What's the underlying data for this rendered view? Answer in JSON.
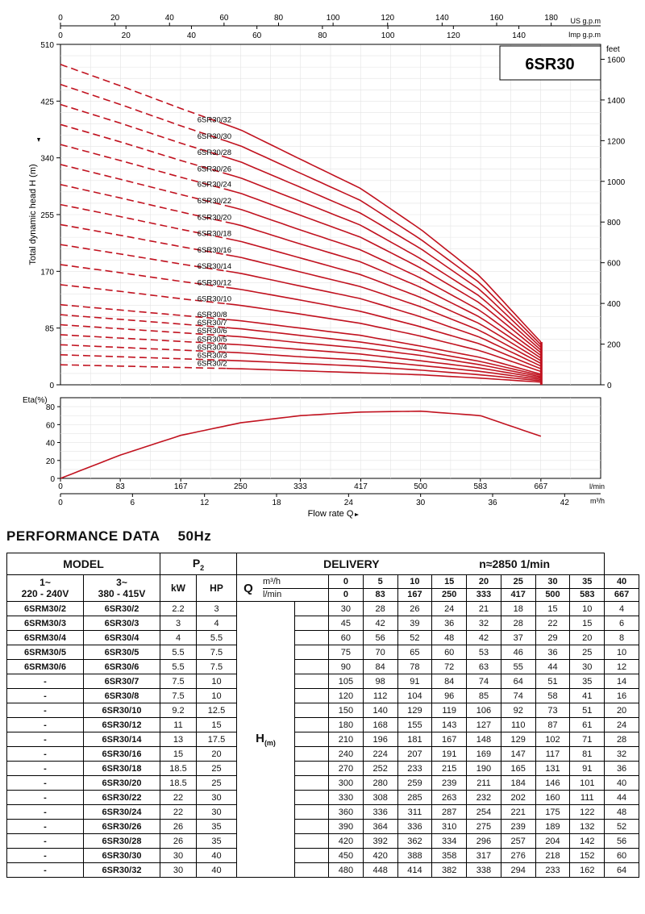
{
  "chart_data": [
    {
      "type": "line",
      "title": "6SR30",
      "ylabel": "Total dynamic head H (m)",
      "ylabel_right": "feet",
      "xlabel_top_us": "US g.p.m",
      "xlabel_top_imp": "Imp g.p.m",
      "ylim": [
        0,
        510
      ],
      "xlim_lmin": [
        0,
        750
      ],
      "y_ticks": [
        "0",
        "85",
        "170",
        "255",
        "340",
        "425",
        "510"
      ],
      "y_ticks_feet": [
        "0",
        "200",
        "400",
        "600",
        "800",
        "1000",
        "1200",
        "1400",
        "1600"
      ],
      "x_ticks_us": [
        "0",
        "20",
        "40",
        "60",
        "80",
        "100",
        "120",
        "140",
        "160",
        "180"
      ],
      "x_ticks_imp": [
        "0",
        "20",
        "40",
        "60",
        "80",
        "100",
        "120",
        "140"
      ],
      "series_note": "dashed segment below 250 l/min, solid above",
      "series": [
        {
          "name": "6SR30/2",
          "values": [
            30,
            28,
            26,
            24,
            21,
            18,
            15,
            10,
            4
          ]
        },
        {
          "name": "6SR30/3",
          "values": [
            45,
            42,
            39,
            36,
            32,
            28,
            22,
            15,
            6
          ]
        },
        {
          "name": "6SR30/4",
          "values": [
            60,
            56,
            52,
            48,
            42,
            37,
            29,
            20,
            8
          ]
        },
        {
          "name": "6SR30/5",
          "values": [
            75,
            70,
            65,
            60,
            53,
            46,
            36,
            25,
            10
          ]
        },
        {
          "name": "6SR30/6",
          "values": [
            90,
            84,
            78,
            72,
            63,
            55,
            44,
            30,
            12
          ]
        },
        {
          "name": "6SR30/7",
          "values": [
            105,
            98,
            91,
            84,
            74,
            64,
            51,
            35,
            14
          ]
        },
        {
          "name": "6SR30/8",
          "values": [
            120,
            112,
            104,
            96,
            85,
            74,
            58,
            41,
            16
          ]
        },
        {
          "name": "6SR30/10",
          "values": [
            150,
            140,
            129,
            119,
            106,
            92,
            73,
            51,
            20
          ]
        },
        {
          "name": "6SR30/12",
          "values": [
            180,
            168,
            155,
            143,
            127,
            110,
            87,
            61,
            24
          ]
        },
        {
          "name": "6SR30/14",
          "values": [
            210,
            196,
            181,
            167,
            148,
            129,
            102,
            71,
            28
          ]
        },
        {
          "name": "6SR30/16",
          "values": [
            240,
            224,
            207,
            191,
            169,
            147,
            117,
            81,
            32
          ]
        },
        {
          "name": "6SR30/18",
          "values": [
            270,
            252,
            233,
            215,
            190,
            165,
            131,
            91,
            36
          ]
        },
        {
          "name": "6SR30/20",
          "values": [
            300,
            280,
            259,
            239,
            211,
            184,
            146,
            101,
            40
          ]
        },
        {
          "name": "6SR30/22",
          "values": [
            330,
            308,
            285,
            263,
            232,
            202,
            160,
            111,
            44
          ]
        },
        {
          "name": "6SR30/24",
          "values": [
            360,
            336,
            311,
            287,
            254,
            221,
            175,
            122,
            48
          ]
        },
        {
          "name": "6SR30/26",
          "values": [
            390,
            364,
            336,
            310,
            275,
            239,
            189,
            132,
            52
          ]
        },
        {
          "name": "6SR30/28",
          "values": [
            420,
            392,
            362,
            334,
            296,
            257,
            204,
            142,
            56
          ]
        },
        {
          "name": "6SR30/30",
          "values": [
            450,
            420,
            388,
            358,
            317,
            276,
            218,
            152,
            60
          ]
        },
        {
          "name": "6SR30/32",
          "values": [
            480,
            448,
            414,
            382,
            338,
            294,
            233,
            162,
            64
          ]
        }
      ],
      "x": [
        0,
        83,
        167,
        250,
        333,
        417,
        500,
        583,
        667
      ],
      "line_color": "#c1121f"
    },
    {
      "type": "line",
      "ylabel": "Eta(%)",
      "xlabel": "Flow rate  Q",
      "ylim": [
        0,
        90
      ],
      "y_ticks": [
        "0",
        "20",
        "40",
        "60",
        "80"
      ],
      "x_ticks_lmin": [
        "0",
        "83",
        "167",
        "250",
        "333",
        "417",
        "500",
        "583",
        "667"
      ],
      "x_unit_lmin": "l/min",
      "x_ticks_m3h": [
        "0",
        "6",
        "12",
        "18",
        "24",
        "30",
        "36",
        "42"
      ],
      "x_unit_m3h": "m³/h",
      "series": [
        {
          "x": [
            0,
            83,
            167,
            250,
            333,
            417,
            500,
            583,
            667
          ],
          "values": [
            0,
            26,
            48,
            62,
            70,
            74,
            75,
            70,
            47
          ]
        }
      ],
      "line_color": "#c1121f"
    }
  ],
  "performance": {
    "title": "PERFORMANCE  DATA",
    "freq": "50Hz",
    "model_header": "MODEL",
    "p2_header": "P",
    "p2_sub": "2",
    "delivery_header": "DELIVERY",
    "speed": "n≈2850 1/min",
    "single_phase": "1~",
    "single_phase_volt": "220 - 240V",
    "three_phase": "3~",
    "three_phase_volt": "380 - 415V",
    "kw": "kW",
    "hp": "HP",
    "q": "Q",
    "q_unit_m3h": "m³/h",
    "q_unit_lmin": "l/min",
    "q_m3h": [
      "0",
      "5",
      "10",
      "15",
      "20",
      "25",
      "30",
      "35",
      "40"
    ],
    "q_lmin": [
      "0",
      "83",
      "167",
      "250",
      "333",
      "417",
      "500",
      "583",
      "667"
    ],
    "h_label": "H",
    "h_unit": "(m)",
    "rows": [
      {
        "m1": "6SRM30/2",
        "m3": "6SR30/2",
        "kw": "2.2",
        "hp": "3",
        "h": [
          "30",
          "28",
          "26",
          "24",
          "21",
          "18",
          "15",
          "10",
          "4"
        ]
      },
      {
        "m1": "6SRM30/3",
        "m3": "6SR30/3",
        "kw": "3",
        "hp": "4",
        "h": [
          "45",
          "42",
          "39",
          "36",
          "32",
          "28",
          "22",
          "15",
          "6"
        ]
      },
      {
        "m1": "6SRM30/4",
        "m3": "6SR30/4",
        "kw": "4",
        "hp": "5.5",
        "h": [
          "60",
          "56",
          "52",
          "48",
          "42",
          "37",
          "29",
          "20",
          "8"
        ]
      },
      {
        "m1": "6SRM30/5",
        "m3": "6SR30/5",
        "kw": "5.5",
        "hp": "7.5",
        "h": [
          "75",
          "70",
          "65",
          "60",
          "53",
          "46",
          "36",
          "25",
          "10"
        ]
      },
      {
        "m1": "6SRM30/6",
        "m3": "6SR30/6",
        "kw": "5.5",
        "hp": "7.5",
        "h": [
          "90",
          "84",
          "78",
          "72",
          "63",
          "55",
          "44",
          "30",
          "12"
        ]
      },
      {
        "m1": "-",
        "m3": "6SR30/7",
        "kw": "7.5",
        "hp": "10",
        "h": [
          "105",
          "98",
          "91",
          "84",
          "74",
          "64",
          "51",
          "35",
          "14"
        ]
      },
      {
        "m1": "-",
        "m3": "6SR30/8",
        "kw": "7.5",
        "hp": "10",
        "h": [
          "120",
          "112",
          "104",
          "96",
          "85",
          "74",
          "58",
          "41",
          "16"
        ]
      },
      {
        "m1": "-",
        "m3": "6SR30/10",
        "kw": "9.2",
        "hp": "12.5",
        "h": [
          "150",
          "140",
          "129",
          "119",
          "106",
          "92",
          "73",
          "51",
          "20"
        ]
      },
      {
        "m1": "-",
        "m3": "6SR30/12",
        "kw": "11",
        "hp": "15",
        "h": [
          "180",
          "168",
          "155",
          "143",
          "127",
          "110",
          "87",
          "61",
          "24"
        ]
      },
      {
        "m1": "-",
        "m3": "6SR30/14",
        "kw": "13",
        "hp": "17.5",
        "h": [
          "210",
          "196",
          "181",
          "167",
          "148",
          "129",
          "102",
          "71",
          "28"
        ]
      },
      {
        "m1": "-",
        "m3": "6SR30/16",
        "kw": "15",
        "hp": "20",
        "h": [
          "240",
          "224",
          "207",
          "191",
          "169",
          "147",
          "117",
          "81",
          "32"
        ]
      },
      {
        "m1": "-",
        "m3": "6SR30/18",
        "kw": "18.5",
        "hp": "25",
        "h": [
          "270",
          "252",
          "233",
          "215",
          "190",
          "165",
          "131",
          "91",
          "36"
        ]
      },
      {
        "m1": "-",
        "m3": "6SR30/20",
        "kw": "18.5",
        "hp": "25",
        "h": [
          "300",
          "280",
          "259",
          "239",
          "211",
          "184",
          "146",
          "101",
          "40"
        ]
      },
      {
        "m1": "-",
        "m3": "6SR30/22",
        "kw": "22",
        "hp": "30",
        "h": [
          "330",
          "308",
          "285",
          "263",
          "232",
          "202",
          "160",
          "111",
          "44"
        ]
      },
      {
        "m1": "-",
        "m3": "6SR30/24",
        "kw": "22",
        "hp": "30",
        "h": [
          "360",
          "336",
          "311",
          "287",
          "254",
          "221",
          "175",
          "122",
          "48"
        ]
      },
      {
        "m1": "-",
        "m3": "6SR30/26",
        "kw": "26",
        "hp": "35",
        "h": [
          "390",
          "364",
          "336",
          "310",
          "275",
          "239",
          "189",
          "132",
          "52"
        ]
      },
      {
        "m1": "-",
        "m3": "6SR30/28",
        "kw": "26",
        "hp": "35",
        "h": [
          "420",
          "392",
          "362",
          "334",
          "296",
          "257",
          "204",
          "142",
          "56"
        ]
      },
      {
        "m1": "-",
        "m3": "6SR30/30",
        "kw": "30",
        "hp": "40",
        "h": [
          "450",
          "420",
          "388",
          "358",
          "317",
          "276",
          "218",
          "152",
          "60"
        ]
      },
      {
        "m1": "-",
        "m3": "6SR30/32",
        "kw": "30",
        "hp": "40",
        "h": [
          "480",
          "448",
          "414",
          "382",
          "338",
          "294",
          "233",
          "162",
          "64"
        ]
      }
    ]
  }
}
